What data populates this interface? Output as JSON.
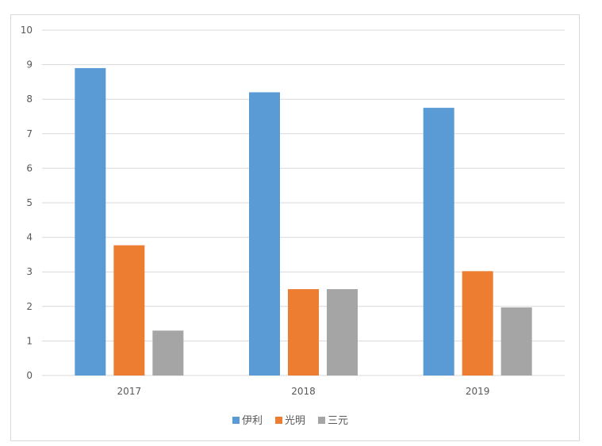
{
  "chart_data": {
    "type": "bar",
    "categories": [
      "2017",
      "2018",
      "2019"
    ],
    "series": [
      {
        "name": "伊利",
        "values": [
          8.9,
          8.2,
          7.75
        ],
        "color": "#5b9bd5"
      },
      {
        "name": "光明",
        "values": [
          3.77,
          2.5,
          3.02
        ],
        "color": "#ed7d31"
      },
      {
        "name": "三元",
        "values": [
          1.3,
          2.5,
          1.97
        ],
        "color": "#a5a5a5"
      }
    ],
    "ylim": [
      0,
      10
    ],
    "yticks": [
      "0",
      "1",
      "2",
      "3",
      "4",
      "5",
      "6",
      "7",
      "8",
      "9",
      "10"
    ],
    "grid": true,
    "gridline_color": "#d9d9d9",
    "legend_position": "bottom"
  }
}
